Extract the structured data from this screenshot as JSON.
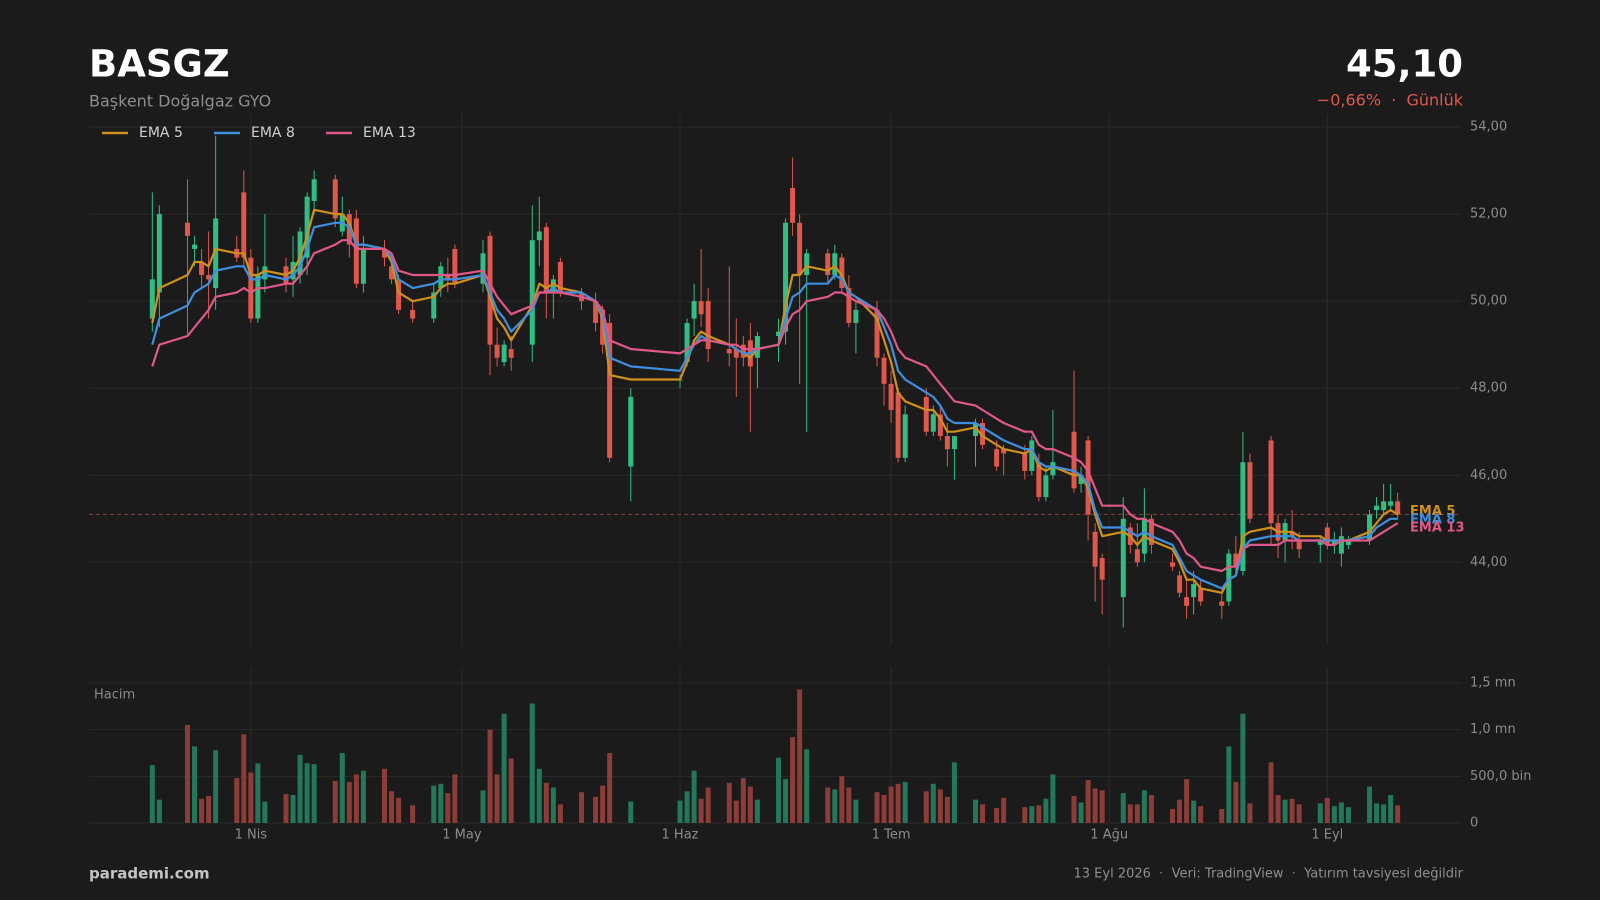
{
  "chart_data": {
    "type": "candlestick",
    "title": "BASGZ",
    "subtitle": "Başkent Doğalgaz GYO",
    "price": "45,10",
    "change": "−0,66%  ·  Günlük",
    "x": [
      "03-18",
      "03-19",
      "03-23",
      "03-24",
      "03-25",
      "03-26",
      "03-27",
      "03-30",
      "03-31",
      "04-01",
      "04-02",
      "04-03",
      "04-06",
      "04-07",
      "04-08",
      "04-09",
      "04-10",
      "04-13",
      "04-14",
      "04-15",
      "04-16",
      "04-17",
      "04-20",
      "04-21",
      "04-22",
      "04-24",
      "04-27",
      "04-28",
      "04-29",
      "04-30",
      "05-04",
      "05-05",
      "05-06",
      "05-07",
      "05-08",
      "05-11",
      "05-12",
      "05-13",
      "05-14",
      "05-15",
      "05-18",
      "05-20",
      "05-21",
      "05-22",
      "05-25",
      "06-01",
      "06-02",
      "06-03",
      "06-04",
      "06-05",
      "06-08",
      "06-09",
      "06-10",
      "06-11",
      "06-12",
      "06-15",
      "06-16",
      "06-17",
      "06-18",
      "06-19",
      "06-22",
      "06-23",
      "06-24",
      "06-25",
      "06-26",
      "06-29",
      "06-30",
      "07-01",
      "07-02",
      "07-03",
      "07-06",
      "07-07",
      "07-08",
      "07-09",
      "07-10",
      "07-13",
      "07-14",
      "07-16",
      "07-17",
      "07-20",
      "07-21",
      "07-22",
      "07-23",
      "07-24",
      "07-27",
      "07-28",
      "07-29",
      "07-30",
      "07-31",
      "08-03",
      "08-04",
      "08-05",
      "08-06",
      "08-07",
      "08-10",
      "08-11",
      "08-12",
      "08-13",
      "08-14",
      "08-17",
      "08-18",
      "08-19",
      "08-20",
      "08-21",
      "08-24",
      "08-25",
      "08-26",
      "08-27",
      "08-28",
      "08-31",
      "09-01",
      "09-02",
      "09-03",
      "09-04",
      "09-07",
      "09-08",
      "09-09",
      "09-10",
      "09-11"
    ],
    "open": [
      49.6,
      50.2,
      51.8,
      51.2,
      50.9,
      50.6,
      50.3,
      51.2,
      52.5,
      51.0,
      49.6,
      50.5,
      50.8,
      50.5,
      50.6,
      51.0,
      52.3,
      52.8,
      51.6,
      52.0,
      51.9,
      50.4,
      51.2,
      50.8,
      50.5,
      49.8,
      49.6,
      50.3,
      50.6,
      51.2,
      50.4,
      51.5,
      49.0,
      48.6,
      48.9,
      49.0,
      51.4,
      51.7,
      50.2,
      50.9,
      50.2,
      50.0,
      49.8,
      49.5,
      46.2,
      48.2,
      48.6,
      49.6,
      50.0,
      50.0,
      48.9,
      48.9,
      49.0,
      49.1,
      48.7,
      49.2,
      49.3,
      52.6,
      51.8,
      50.6,
      51.1,
      50.6,
      51.0,
      50.3,
      49.5,
      49.8,
      48.7,
      48.1,
      47.9,
      46.4,
      47.8,
      47.0,
      47.4,
      46.9,
      46.6,
      46.9,
      47.2,
      46.6,
      46.6,
      46.5,
      46.1,
      46.3,
      45.5,
      46.0,
      47.0,
      45.8,
      46.8,
      44.7,
      44.1,
      43.2,
      44.8,
      44.3,
      44.2,
      45.0,
      44.0,
      43.7,
      43.2,
      43.2,
      43.4,
      43.1,
      43.1,
      44.2,
      43.8,
      46.3,
      46.8,
      44.9,
      44.5,
      44.7,
      44.5,
      44.4,
      44.8,
      44.4,
      44.2,
      44.4,
      44.5,
      45.2,
      45.2,
      45.3,
      45.4
    ],
    "high": [
      52.5,
      52.2,
      52.8,
      51.5,
      51.2,
      51.6,
      53.8,
      51.5,
      53.0,
      51.2,
      50.8,
      52.0,
      51.0,
      51.5,
      51.7,
      52.5,
      53.0,
      52.9,
      52.4,
      52.1,
      52.1,
      51.5,
      51.4,
      51.0,
      50.6,
      50.0,
      50.4,
      50.9,
      51.0,
      51.3,
      51.4,
      51.6,
      49.4,
      49.1,
      49.2,
      52.2,
      52.4,
      51.8,
      50.6,
      51.0,
      50.3,
      50.2,
      49.9,
      49.7,
      48.0,
      48.3,
      49.6,
      50.4,
      51.2,
      50.3,
      50.8,
      49.6,
      49.2,
      49.5,
      49.3,
      49.6,
      51.9,
      53.3,
      52.0,
      51.2,
      51.2,
      51.3,
      51.1,
      50.6,
      50.0,
      50.0,
      48.8,
      48.4,
      48.0,
      47.6,
      48.0,
      47.6,
      47.6,
      47.2,
      46.9,
      47.3,
      47.3,
      46.8,
      46.7,
      46.7,
      46.9,
      46.5,
      46.2,
      47.5,
      48.4,
      46.2,
      46.9,
      44.9,
      44.2,
      45.5,
      44.9,
      44.9,
      45.7,
      45.1,
      44.2,
      43.8,
      43.6,
      43.8,
      43.6,
      43.3,
      44.3,
      44.6,
      47.0,
      46.5,
      46.9,
      45.1,
      45.0,
      45.2,
      44.7,
      44.6,
      44.9,
      44.7,
      44.8,
      44.6,
      45.2,
      45.5,
      45.8,
      45.8,
      45.6
    ],
    "low": [
      49.3,
      49.4,
      49.2,
      50.8,
      50.3,
      49.6,
      49.8,
      50.9,
      50.8,
      49.5,
      49.5,
      50.2,
      50.2,
      50.1,
      50.4,
      50.6,
      52.0,
      51.7,
      51.5,
      51.0,
      50.3,
      50.2,
      50.8,
      50.4,
      49.7,
      49.5,
      49.5,
      50.1,
      50.2,
      50.3,
      50.2,
      48.3,
      48.5,
      48.5,
      48.4,
      48.6,
      50.8,
      49.6,
      49.6,
      50.1,
      49.8,
      49.3,
      48.8,
      46.3,
      45.4,
      48.0,
      48.5,
      49.2,
      49.4,
      48.6,
      48.5,
      47.8,
      48.5,
      47.0,
      48.0,
      48.6,
      49.0,
      51.5,
      48.1,
      47.0,
      50.4,
      50.5,
      50.2,
      49.4,
      48.8,
      48.5,
      47.6,
      47.2,
      46.3,
      46.3,
      46.9,
      46.9,
      46.8,
      46.2,
      45.9,
      46.2,
      46.6,
      46.1,
      46.0,
      45.9,
      46.0,
      45.4,
      45.4,
      45.9,
      45.6,
      45.6,
      44.5,
      43.1,
      42.8,
      42.5,
      44.2,
      43.9,
      44.0,
      44.2,
      43.8,
      43.2,
      42.7,
      42.8,
      43.0,
      42.7,
      43.0,
      43.8,
      43.7,
      44.9,
      44.4,
      44.1,
      44.0,
      44.3,
      44.1,
      44.0,
      44.3,
      44.2,
      43.9,
      44.3,
      44.4,
      45.0,
      45.1,
      45.2,
      45.0
    ],
    "close": [
      50.5,
      52.0,
      51.5,
      51.3,
      50.6,
      50.5,
      51.9,
      51.0,
      51.0,
      49.6,
      50.6,
      50.8,
      50.4,
      50.9,
      51.6,
      52.4,
      52.8,
      51.9,
      52.0,
      51.3,
      50.4,
      51.2,
      51.0,
      50.5,
      49.8,
      49.6,
      50.2,
      50.8,
      50.5,
      50.4,
      51.1,
      49.0,
      48.7,
      49.0,
      48.7,
      51.4,
      51.6,
      50.2,
      50.5,
      50.2,
      50.0,
      49.5,
      49.0,
      46.4,
      47.8,
      48.2,
      49.5,
      50.0,
      49.7,
      48.9,
      48.8,
      48.7,
      48.7,
      48.5,
      49.2,
      49.3,
      51.8,
      51.8,
      50.6,
      51.1,
      50.6,
      51.1,
      50.3,
      49.5,
      49.8,
      48.7,
      48.1,
      47.5,
      46.4,
      47.4,
      47.0,
      47.4,
      46.9,
      46.6,
      46.9,
      47.2,
      46.7,
      46.2,
      46.5,
      46.1,
      46.8,
      45.5,
      46.0,
      46.3,
      45.7,
      46.0,
      45.1,
      43.9,
      43.6,
      45.0,
      44.4,
      44.0,
      45.0,
      44.4,
      43.9,
      43.3,
      43.0,
      43.5,
      43.1,
      43.0,
      44.2,
      43.9,
      46.3,
      45.0,
      44.9,
      44.5,
      44.9,
      44.6,
      44.3,
      44.5,
      44.4,
      44.5,
      44.6,
      44.5,
      45.1,
      45.3,
      45.4,
      45.4,
      45.1
    ],
    "volume": [
      620000,
      250000,
      1050000,
      820000,
      260000,
      290000,
      780000,
      480000,
      950000,
      540000,
      640000,
      230000,
      310000,
      300000,
      730000,
      640000,
      630000,
      450000,
      750000,
      440000,
      520000,
      560000,
      580000,
      340000,
      270000,
      190000,
      400000,
      420000,
      320000,
      520000,
      350000,
      1000000,
      520000,
      1170000,
      690000,
      1280000,
      580000,
      430000,
      380000,
      200000,
      330000,
      280000,
      400000,
      750000,
      230000,
      240000,
      340000,
      560000,
      260000,
      380000,
      430000,
      240000,
      480000,
      390000,
      250000,
      700000,
      470000,
      920000,
      1430000,
      790000,
      380000,
      360000,
      500000,
      380000,
      250000,
      330000,
      300000,
      390000,
      420000,
      440000,
      340000,
      420000,
      360000,
      280000,
      650000,
      250000,
      200000,
      160000,
      270000,
      170000,
      180000,
      190000,
      260000,
      520000,
      290000,
      220000,
      460000,
      370000,
      350000,
      320000,
      200000,
      200000,
      350000,
      300000,
      150000,
      250000,
      470000,
      240000,
      180000,
      150000,
      820000,
      440000,
      1170000,
      210000,
      650000,
      300000,
      250000,
      260000,
      200000,
      210000,
      270000,
      180000,
      220000,
      170000,
      390000,
      210000,
      200000,
      300000,
      190000
    ],
    "up_color": "#2fbf85",
    "down_color": "#e0574c",
    "volume_up_color": "#23775a",
    "volume_down_color": "#8c3d37",
    "series": [
      {
        "name": "EMA 5",
        "color": "#d0901c",
        "values": [
          49.5,
          50.3,
          50.6,
          50.9,
          50.9,
          50.8,
          51.2,
          51.1,
          51.1,
          50.6,
          50.6,
          50.7,
          50.6,
          50.7,
          51.0,
          51.5,
          52.1,
          52.0,
          52.0,
          51.8,
          51.3,
          51.3,
          51.2,
          50.9,
          50.2,
          50.0,
          50.1,
          50.3,
          50.4,
          50.4,
          50.6,
          50.1,
          49.6,
          49.4,
          49.1,
          49.9,
          50.4,
          50.3,
          50.4,
          50.3,
          50.2,
          50.0,
          49.6,
          48.3,
          48.2,
          48.2,
          48.6,
          49.1,
          49.3,
          49.2,
          49.0,
          48.9,
          48.8,
          48.7,
          48.9,
          49.0,
          49.9,
          50.6,
          50.6,
          50.8,
          50.7,
          50.8,
          50.6,
          50.2,
          50.1,
          49.6,
          49.1,
          48.6,
          47.9,
          47.7,
          47.5,
          47.5,
          47.3,
          47.0,
          47.0,
          47.1,
          46.9,
          46.7,
          46.6,
          46.5,
          46.6,
          46.2,
          46.1,
          46.2,
          46.0,
          46.0,
          45.7,
          45.1,
          44.6,
          44.7,
          44.6,
          44.4,
          44.6,
          44.5,
          44.3,
          44.0,
          43.6,
          43.6,
          43.4,
          43.3,
          43.6,
          43.7,
          44.6,
          44.7,
          44.8,
          44.7,
          44.7,
          44.7,
          44.6,
          44.6,
          44.5,
          44.5,
          44.5,
          44.5,
          44.7,
          44.9,
          45.1,
          45.2,
          45.1
        ]
      },
      {
        "name": "EMA 8",
        "color": "#3f8fe0",
        "values": [
          49.0,
          49.6,
          49.9,
          50.2,
          50.3,
          50.4,
          50.7,
          50.8,
          50.8,
          50.5,
          50.5,
          50.6,
          50.5,
          50.6,
          50.8,
          51.2,
          51.7,
          51.8,
          51.8,
          51.7,
          51.3,
          51.3,
          51.2,
          51.0,
          50.5,
          50.3,
          50.4,
          50.5,
          50.5,
          50.5,
          50.6,
          50.2,
          49.8,
          49.6,
          49.3,
          49.8,
          50.2,
          50.2,
          50.3,
          50.2,
          50.2,
          50.0,
          49.7,
          48.7,
          48.5,
          48.4,
          48.7,
          49.0,
          49.2,
          49.1,
          49.0,
          48.9,
          48.8,
          48.8,
          48.9,
          49.0,
          49.6,
          50.1,
          50.2,
          50.4,
          50.4,
          50.6,
          50.5,
          50.2,
          50.1,
          49.8,
          49.4,
          49.0,
          48.4,
          48.2,
          47.9,
          47.8,
          47.6,
          47.3,
          47.2,
          47.2,
          47.1,
          46.9,
          46.8,
          46.6,
          46.6,
          46.3,
          46.2,
          46.2,
          46.1,
          46.0,
          45.8,
          45.2,
          44.8,
          44.8,
          44.7,
          44.6,
          44.7,
          44.6,
          44.4,
          44.1,
          43.8,
          43.7,
          43.6,
          43.4,
          43.6,
          43.7,
          44.3,
          44.5,
          44.6,
          44.6,
          44.6,
          44.6,
          44.5,
          44.5,
          44.5,
          44.5,
          44.5,
          44.5,
          44.6,
          44.8,
          44.9,
          45.0,
          45.0
        ]
      },
      {
        "name": "EMA 13",
        "color": "#e0588a",
        "values": [
          48.5,
          49.0,
          49.2,
          49.4,
          49.6,
          49.8,
          50.1,
          50.2,
          50.3,
          50.2,
          50.3,
          50.3,
          50.4,
          50.4,
          50.6,
          50.8,
          51.1,
          51.3,
          51.4,
          51.4,
          51.2,
          51.2,
          51.2,
          51.1,
          50.7,
          50.6,
          50.6,
          50.6,
          50.6,
          50.6,
          50.7,
          50.4,
          50.1,
          49.9,
          49.7,
          49.9,
          50.2,
          50.2,
          50.2,
          50.2,
          50.1,
          50.0,
          49.8,
          49.1,
          48.9,
          48.8,
          48.9,
          49.0,
          49.1,
          49.1,
          49.0,
          49.0,
          48.9,
          48.9,
          48.9,
          49.0,
          49.4,
          49.7,
          49.8,
          50.0,
          50.1,
          50.2,
          50.2,
          50.1,
          50.0,
          49.8,
          49.6,
          49.3,
          48.9,
          48.7,
          48.5,
          48.3,
          48.1,
          47.9,
          47.7,
          47.6,
          47.5,
          47.3,
          47.2,
          47.0,
          47.0,
          46.7,
          46.6,
          46.6,
          46.4,
          46.3,
          46.1,
          45.7,
          45.3,
          45.3,
          45.1,
          45.0,
          45.0,
          44.9,
          44.7,
          44.5,
          44.2,
          44.1,
          43.9,
          43.8,
          43.9,
          43.9,
          44.3,
          44.4,
          44.4,
          44.4,
          44.5,
          44.5,
          44.5,
          44.5,
          44.4,
          44.4,
          44.5,
          44.5,
          44.5,
          44.6,
          44.7,
          44.8,
          44.9
        ]
      }
    ],
    "xlim": [
      "03-09",
      "09-20"
    ],
    "xticks": [
      {
        "value": "04-01",
        "label": "1 Nis"
      },
      {
        "value": "05-01",
        "label": "1 May"
      },
      {
        "value": "06-01",
        "label": "1 Haz"
      },
      {
        "value": "07-01",
        "label": "1 Tem"
      },
      {
        "value": "08-01",
        "label": "1 Ağu"
      },
      {
        "value": "09-01",
        "label": "1 Eyl"
      }
    ],
    "ylim": [
      42.1,
      54.3
    ],
    "yticks": [
      {
        "value": 44,
        "label": "44,00"
      },
      {
        "value": 46,
        "label": "46,00"
      },
      {
        "value": 48,
        "label": "48,00"
      },
      {
        "value": 50,
        "label": "50,00"
      },
      {
        "value": 52,
        "label": "52,00"
      },
      {
        "value": 54,
        "label": "54,00"
      }
    ],
    "volume_label": "Hacim",
    "volume_ylim": [
      0,
      1660000
    ],
    "volume_yticks": [
      0,
      {
        "value": 500000,
        "label": "500,0 bin"
      },
      {
        "value": 1000000,
        "label": "1,0 mn"
      },
      {
        "value": 1500000,
        "label": "1,5 mn"
      }
    ],
    "grid": true,
    "legend": "upper left",
    "last_price_line": true
  },
  "footer": {
    "brand": "parademi.com",
    "note": "13 Eyl 2026  ·  Veri: TradingView  ·  Yatırım tavsiyesi değildir"
  }
}
